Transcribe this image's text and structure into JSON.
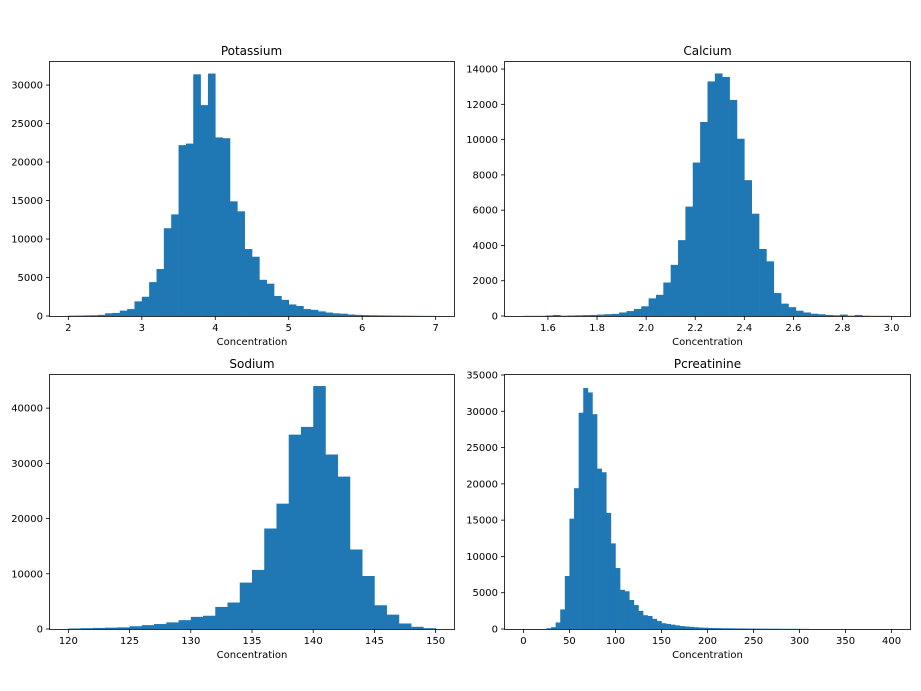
{
  "chart_data": [
    {
      "type": "bar",
      "title": "Potassium",
      "xlabel": "Concentration",
      "ylabel": "",
      "color": "#1f77b4",
      "xlim": [
        1.75,
        7.25
      ],
      "ylim": [
        0,
        33000
      ],
      "xticks": [
        2,
        3,
        4,
        5,
        6,
        7
      ],
      "xtick_labels": [
        "2",
        "3",
        "4",
        "5",
        "6",
        "7"
      ],
      "yticks": [
        0,
        5000,
        10000,
        15000,
        20000,
        25000,
        30000
      ],
      "ytick_labels": [
        "0",
        "5000",
        "10000",
        "15000",
        "20000",
        "25000",
        "30000"
      ],
      "bin_edges": [
        2.0,
        2.1,
        2.2,
        2.3,
        2.4,
        2.5,
        2.6,
        2.7,
        2.8,
        2.9,
        3.0,
        3.1,
        3.2,
        3.3,
        3.4,
        3.5,
        3.6,
        3.7,
        3.8,
        3.9,
        4.0,
        4.1,
        4.2,
        4.3,
        4.4,
        4.5,
        4.6,
        4.7,
        4.8,
        4.9,
        5.0,
        5.1,
        5.2,
        5.3,
        5.4,
        5.5,
        5.6,
        5.7,
        5.8,
        5.9,
        6.0,
        6.1,
        6.2,
        6.3,
        6.4,
        6.5,
        6.6,
        6.7,
        6.8,
        6.9,
        7.0
      ],
      "values": [
        50,
        60,
        80,
        100,
        150,
        350,
        400,
        700,
        900,
        1900,
        2500,
        4400,
        6100,
        11400,
        13200,
        22200,
        22400,
        31400,
        27400,
        31500,
        23200,
        23100,
        14900,
        13600,
        8700,
        7700,
        4700,
        4200,
        2600,
        2100,
        1500,
        1300,
        900,
        800,
        600,
        450,
        350,
        300,
        200,
        150,
        120,
        100,
        80,
        70,
        60,
        50,
        40,
        30,
        20,
        15
      ]
    },
    {
      "type": "bar",
      "title": "Calcium",
      "xlabel": "Concentration",
      "ylabel": "",
      "color": "#1f77b4",
      "xlim": [
        1.425,
        3.075
      ],
      "ylim": [
        0,
        14400
      ],
      "xticks": [
        1.6,
        1.8,
        2.0,
        2.2,
        2.4,
        2.6,
        2.8,
        3.0
      ],
      "xtick_labels": [
        "1.6",
        "1.8",
        "2.0",
        "2.2",
        "2.4",
        "2.6",
        "2.8",
        "3.0"
      ],
      "yticks": [
        0,
        2000,
        4000,
        6000,
        8000,
        10000,
        12000,
        14000
      ],
      "ytick_labels": [
        "0",
        "2000",
        "4000",
        "6000",
        "8000",
        "10000",
        "12000",
        "14000"
      ],
      "bin_edges": [
        1.5,
        1.53,
        1.56,
        1.59,
        1.62,
        1.65,
        1.68,
        1.71,
        1.74,
        1.77,
        1.8,
        1.83,
        1.86,
        1.89,
        1.92,
        1.95,
        1.98,
        2.01,
        2.04,
        2.07,
        2.1,
        2.13,
        2.16,
        2.19,
        2.22,
        2.25,
        2.28,
        2.31,
        2.34,
        2.37,
        2.4,
        2.43,
        2.46,
        2.49,
        2.52,
        2.55,
        2.58,
        2.61,
        2.64,
        2.67,
        2.7,
        2.73,
        2.76,
        2.79,
        2.82,
        2.85,
        2.88,
        2.91,
        2.94,
        2.97,
        3.0
      ],
      "values": [
        10,
        10,
        10,
        30,
        60,
        20,
        30,
        40,
        50,
        60,
        80,
        100,
        120,
        200,
        280,
        400,
        550,
        1000,
        1200,
        1900,
        2900,
        4300,
        6200,
        8700,
        11000,
        13300,
        13750,
        13550,
        12250,
        10050,
        7700,
        5800,
        3800,
        3100,
        1300,
        700,
        500,
        300,
        200,
        130,
        100,
        60,
        40,
        80,
        20,
        60,
        20,
        10,
        10,
        10
      ]
    },
    {
      "type": "bar",
      "title": "Sodium",
      "xlabel": "Concentration",
      "ylabel": "",
      "color": "#1f77b4",
      "xlim": [
        118.5,
        151.5
      ],
      "ylim": [
        0,
        46000
      ],
      "xticks": [
        120,
        125,
        130,
        135,
        140,
        145,
        150
      ],
      "xtick_labels": [
        "120",
        "125",
        "130",
        "135",
        "140",
        "145",
        "150"
      ],
      "yticks": [
        0,
        10000,
        20000,
        30000,
        40000
      ],
      "ytick_labels": [
        "0",
        "10000",
        "20000",
        "30000",
        "40000"
      ],
      "bin_edges": [
        120,
        121,
        122,
        123,
        124,
        125,
        126,
        127,
        128,
        129,
        130,
        131,
        132,
        133,
        134,
        135,
        136,
        137,
        138,
        139,
        140,
        141,
        142,
        143,
        144,
        145,
        146,
        147,
        148,
        149,
        150
      ],
      "values": [
        100,
        150,
        200,
        250,
        300,
        500,
        700,
        900,
        1200,
        1600,
        2200,
        2400,
        4000,
        4800,
        8400,
        10700,
        18200,
        22700,
        35200,
        36600,
        44000,
        31600,
        27600,
        14400,
        9600,
        4300,
        2600,
        1000,
        400,
        150
      ]
    },
    {
      "type": "bar",
      "title": "Pcreatinine",
      "xlabel": "Concentration",
      "ylabel": "",
      "color": "#1f77b4",
      "xlim": [
        -20,
        420
      ],
      "ylim": [
        0,
        35000
      ],
      "xticks": [
        0,
        50,
        100,
        150,
        200,
        250,
        300,
        350,
        400
      ],
      "xtick_labels": [
        "0",
        "50",
        "100",
        "150",
        "200",
        "250",
        "300",
        "350",
        "400"
      ],
      "yticks": [
        0,
        5000,
        10000,
        15000,
        20000,
        25000,
        30000,
        35000
      ],
      "ytick_labels": [
        "0",
        "5000",
        "10000",
        "15000",
        "20000",
        "25000",
        "30000",
        "35000"
      ],
      "bin_edges": [
        0,
        5,
        10,
        15,
        20,
        25,
        30,
        35,
        40,
        45,
        50,
        55,
        60,
        65,
        70,
        75,
        80,
        85,
        90,
        95,
        100,
        105,
        110,
        115,
        120,
        125,
        130,
        135,
        140,
        145,
        150,
        155,
        160,
        165,
        170,
        175,
        180,
        185,
        190,
        195,
        200,
        205,
        210,
        215,
        220,
        225,
        230,
        235,
        240,
        245,
        250,
        255,
        260,
        265,
        270,
        275,
        280,
        285,
        290,
        295,
        300,
        305,
        310
      ],
      "values": [
        0,
        0,
        0,
        0,
        0,
        100,
        250,
        900,
        2700,
        7300,
        15200,
        19400,
        29800,
        33200,
        32600,
        29600,
        22100,
        21600,
        16000,
        11800,
        8400,
        5400,
        5200,
        4000,
        3300,
        2500,
        1900,
        1800,
        1400,
        1100,
        800,
        700,
        600,
        500,
        400,
        350,
        300,
        250,
        200,
        180,
        150,
        130,
        120,
        100,
        100,
        90,
        80,
        80,
        70,
        60,
        60,
        50,
        50,
        40,
        40,
        40,
        30,
        30,
        30,
        25,
        20,
        20
      ]
    }
  ]
}
